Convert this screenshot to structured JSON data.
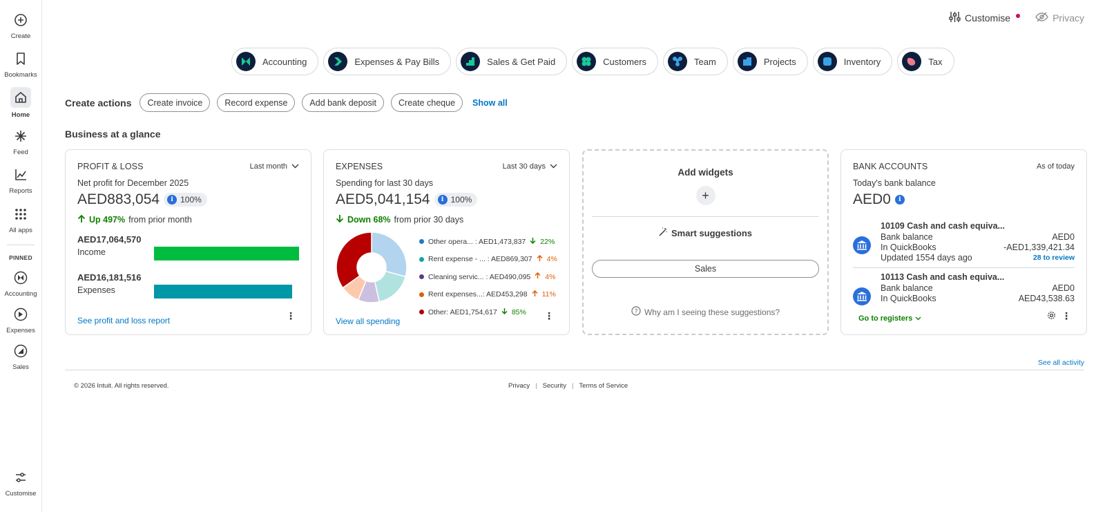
{
  "rail": {
    "items": [
      {
        "label": "Create",
        "icon": "plus-circle-icon"
      },
      {
        "label": "Bookmarks",
        "icon": "bookmark-icon"
      },
      {
        "label": "Home",
        "icon": "home-icon"
      },
      {
        "label": "Feed",
        "icon": "sparkle-icon"
      },
      {
        "label": "Reports",
        "icon": "line-chart-icon"
      },
      {
        "label": "All apps",
        "icon": "grid-icon"
      }
    ],
    "pinned_label": "PINNED",
    "pinned": [
      {
        "label": "Accounting",
        "icon": "accounting-icon"
      },
      {
        "label": "Expenses",
        "icon": "expenses-icon"
      },
      {
        "label": "Sales",
        "icon": "sales-icon"
      }
    ],
    "customise_label": "Customise"
  },
  "topbar": {
    "customise": "Customise",
    "privacy": "Privacy"
  },
  "apps": [
    {
      "label": "Accounting",
      "color": "#1ac99a"
    },
    {
      "label": "Expenses & Pay Bills",
      "color": "#1ac99a"
    },
    {
      "label": "Sales & Get Paid",
      "color": "#1ac99a"
    },
    {
      "label": "Customers",
      "color": "#1ac99a"
    },
    {
      "label": "Team",
      "color": "#38a3e8"
    },
    {
      "label": "Projects",
      "color": "#38a3e8"
    },
    {
      "label": "Inventory",
      "color": "#38a3e8"
    },
    {
      "label": "Tax",
      "color": "#f07b8b"
    }
  ],
  "create_actions": {
    "title": "Create actions",
    "chips": [
      "Create invoice",
      "Record expense",
      "Add bank deposit",
      "Create cheque"
    ],
    "show_all": "Show all"
  },
  "glance_title": "Business at a glance",
  "pl": {
    "title": "PROFIT & LOSS",
    "filter": "Last month",
    "subtitle": "Net profit for December 2025",
    "amount": "AED883,054",
    "badge": "100%",
    "trend_bold": "Up 497%",
    "trend_rest": "from prior month",
    "income_amount": "AED17,064,570",
    "income_label": "Income",
    "income_fraction": 1.0,
    "expenses_amount": "AED16,181,516",
    "expenses_label": "Expenses",
    "expenses_fraction": 0.95,
    "link": "See profit and loss report",
    "colors": {
      "income": "#00bc3f",
      "expenses": "#0097a7"
    }
  },
  "expenses": {
    "title": "EXPENSES",
    "filter": "Last 30 days",
    "subtitle": "Spending for last 30 days",
    "amount": "AED5,041,154",
    "badge": "100%",
    "trend_bold": "Down 68%",
    "trend_rest": "from prior 30 days",
    "link": "View all spending",
    "legend": [
      {
        "label": "Other opera... : AED1,473,837",
        "pct": "22%",
        "dir": "down",
        "color": "#1f7ac2"
      },
      {
        "label": "Rent expense - ... : AED869,307",
        "pct": "4%",
        "dir": "up",
        "color": "#14a3a3"
      },
      {
        "label": "Cleaning servic... : AED490,095",
        "pct": "4%",
        "dir": "up",
        "color": "#5b3a8a"
      },
      {
        "label": "Rent expenses...: AED453,298",
        "pct": "11%",
        "dir": "up",
        "color": "#e15d06"
      },
      {
        "label": "Other: AED1,754,617",
        "pct": "85%",
        "dir": "down",
        "color": "#b00000"
      }
    ]
  },
  "chart_data": {
    "type": "pie",
    "categories": [
      "Other opera...",
      "Rent expense - ...",
      "Cleaning servic...",
      "Rent expenses...",
      "Other"
    ],
    "values": [
      1473837,
      869307,
      490095,
      453298,
      1754617
    ],
    "colors": [
      "#b3d4ee",
      "#b0e3df",
      "#cdbfe0",
      "#fdc9ad",
      "#b80000"
    ]
  },
  "widgets": {
    "title": "Add widgets",
    "smart": "Smart suggestions",
    "sales": "Sales",
    "why": "Why am I seeing these suggestions?"
  },
  "bank": {
    "title": "BANK ACCOUNTS",
    "filter": "As of today",
    "subtitle": "Today's bank balance",
    "amount": "AED0",
    "accounts": [
      {
        "name": "10109 Cash and cash equiva...",
        "l1": "Bank balance",
        "v1": "AED0",
        "l2": "In QuickBooks",
        "v2": "-AED1,339,421.34",
        "l3": "Updated 1554 days ago",
        "v3": "28 to review"
      },
      {
        "name": "10113 Cash and cash equiva...",
        "l1": "Bank balance",
        "v1": "AED0",
        "l2": "In QuickBooks",
        "v2": "AED43,538.63"
      }
    ],
    "goto": "Go to registers"
  },
  "footer": {
    "see_all": "See all activity",
    "copyright": "© 2026 Intuit. All rights reserved.",
    "links": [
      "Privacy",
      "Security",
      "Terms of Service"
    ]
  }
}
